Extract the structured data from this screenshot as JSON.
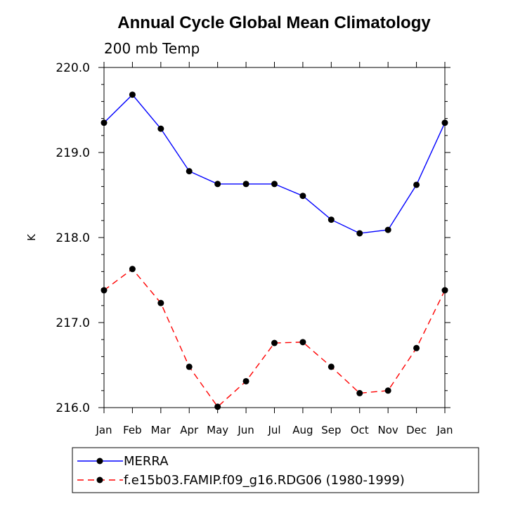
{
  "chart_data": {
    "type": "line",
    "title": "Annual Cycle Global Mean Climatology",
    "subtitle": "200 mb Temp",
    "xlabel": "",
    "ylabel": "K",
    "categories": [
      "Jan",
      "Feb",
      "Mar",
      "Apr",
      "May",
      "Jun",
      "Jul",
      "Aug",
      "Sep",
      "Oct",
      "Nov",
      "Dec",
      "Jan"
    ],
    "ylim": [
      216.0,
      220.0
    ],
    "yticks": [
      216.0,
      217.0,
      218.0,
      219.0,
      220.0
    ],
    "ytick_labels": [
      "216.0",
      "217.0",
      "218.0",
      "219.0",
      "220.0"
    ],
    "yminor_step": 0.2,
    "grid": false,
    "series": [
      {
        "name": "MERRA",
        "color": "#0000ff",
        "dash": "solid",
        "values": [
          219.35,
          219.68,
          219.28,
          218.78,
          218.63,
          218.63,
          218.63,
          218.49,
          218.21,
          218.05,
          218.09,
          218.62,
          219.35
        ]
      },
      {
        "name": "f.e15b03.FAMIP.f09_g16.RDG06 (1980-1999)",
        "color": "#ff0000",
        "dash": "dashed",
        "values": [
          217.38,
          217.63,
          217.23,
          216.48,
          216.01,
          216.31,
          216.76,
          216.77,
          216.48,
          216.17,
          216.2,
          216.7,
          217.38
        ]
      }
    ],
    "legend_position": "bottom-left"
  }
}
